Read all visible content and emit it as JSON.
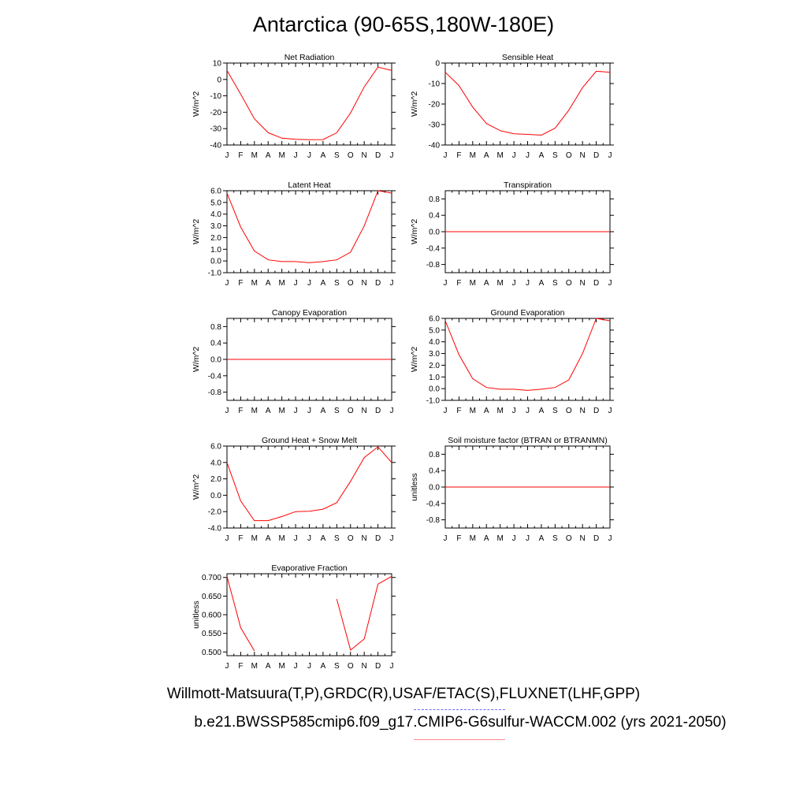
{
  "page": {
    "title": "Antarctica (90-65S,180W-180E)"
  },
  "footer": {
    "line1": "Willmott-Matsuura(T,P),GRDC(R),USAF/ETAC(S),FLUXNET(LHF,GPP)",
    "line2": "b.e21.BWSSP585cmip6.f09_g17.CMIP6-G6sulfur-WACCM.002 (yrs 2021-2050)"
  },
  "colors": {
    "series": "#ff0000",
    "axis": "#000000"
  },
  "chart_data": [
    {
      "type": "line",
      "title": "Net Radiation",
      "ylabel": "W/m^2",
      "categories": [
        "J",
        "F",
        "M",
        "A",
        "M",
        "J",
        "J",
        "A",
        "S",
        "O",
        "N",
        "D",
        "J"
      ],
      "ylim": [
        -40,
        10
      ],
      "yticks": [
        10,
        0,
        -10,
        -20,
        -30,
        -40
      ],
      "yticklabels": [
        "10",
        "0",
        "-10",
        "-20",
        "-30",
        "-40"
      ],
      "values": [
        5.5,
        -9,
        -24,
        -32.5,
        -35.8,
        -36.5,
        -36.8,
        -36.7,
        -32.5,
        -20.5,
        -4.5,
        7.5,
        5.5
      ]
    },
    {
      "type": "line",
      "title": "Sensible Heat",
      "ylabel": "W/m^2",
      "categories": [
        "J",
        "F",
        "M",
        "A",
        "M",
        "J",
        "J",
        "A",
        "S",
        "O",
        "N",
        "D",
        "J"
      ],
      "ylim": [
        -40,
        0
      ],
      "yticks": [
        0,
        -10,
        -20,
        -30,
        -40
      ],
      "yticklabels": [
        "0",
        "-10",
        "-20",
        "-30",
        "-40"
      ],
      "values": [
        -4.5,
        -11,
        -21.5,
        -29.5,
        -33,
        -34.5,
        -34.8,
        -35.2,
        -31.8,
        -23,
        -12,
        -4,
        -4.5
      ]
    },
    {
      "type": "line",
      "title": "Latent Heat",
      "ylabel": "W/m^2",
      "categories": [
        "J",
        "F",
        "M",
        "A",
        "M",
        "J",
        "J",
        "A",
        "S",
        "O",
        "N",
        "D",
        "J"
      ],
      "ylim": [
        -1,
        6
      ],
      "yticks": [
        6,
        5,
        4,
        3,
        2,
        1,
        0,
        -1
      ],
      "yticklabels": [
        "6.0",
        "5.0",
        "4.0",
        "3.0",
        "2.0",
        "1.0",
        "0.0",
        "-1.0"
      ],
      "values": [
        5.8,
        2.9,
        0.85,
        0.1,
        -0.05,
        -0.05,
        -0.15,
        -0.05,
        0.1,
        0.75,
        3.0,
        6.0,
        5.8
      ]
    },
    {
      "type": "line",
      "title": "Transpiration",
      "ylabel": "W/m^2",
      "categories": [
        "J",
        "F",
        "M",
        "A",
        "M",
        "J",
        "J",
        "A",
        "S",
        "O",
        "N",
        "D",
        "J"
      ],
      "ylim": [
        -1,
        1
      ],
      "yticks": [
        0.8,
        0.4,
        0,
        -0.4,
        -0.8
      ],
      "yticklabels": [
        "0.8",
        "0.4",
        "0.0",
        "-0.4",
        "-0.8"
      ],
      "values": [
        0,
        0,
        0,
        0,
        0,
        0,
        0,
        0,
        0,
        0,
        0,
        0,
        0
      ]
    },
    {
      "type": "line",
      "title": "Canopy Evaporation",
      "ylabel": "W/m^2",
      "categories": [
        "J",
        "F",
        "M",
        "A",
        "M",
        "J",
        "J",
        "A",
        "S",
        "O",
        "N",
        "D",
        "J"
      ],
      "ylim": [
        -1,
        1
      ],
      "yticks": [
        0.8,
        0.4,
        0,
        -0.4,
        -0.8
      ],
      "yticklabels": [
        "0.8",
        "0.4",
        "0.0",
        "-0.4",
        "-0.8"
      ],
      "values": [
        0,
        0,
        0,
        0,
        0,
        0,
        0,
        0,
        0,
        0,
        0,
        0,
        0
      ]
    },
    {
      "type": "line",
      "title": "Ground Evaporation",
      "ylabel": "W/m^2",
      "categories": [
        "J",
        "F",
        "M",
        "A",
        "M",
        "J",
        "J",
        "A",
        "S",
        "O",
        "N",
        "D",
        "J"
      ],
      "ylim": [
        -1,
        6
      ],
      "yticks": [
        6,
        5,
        4,
        3,
        2,
        1,
        0,
        -1
      ],
      "yticklabels": [
        "6.0",
        "5.0",
        "4.0",
        "3.0",
        "2.0",
        "1.0",
        "0.0",
        "-1.0"
      ],
      "values": [
        5.8,
        2.9,
        0.85,
        0.1,
        -0.05,
        -0.05,
        -0.15,
        -0.05,
        0.1,
        0.75,
        3.0,
        6.0,
        5.8
      ]
    },
    {
      "type": "line",
      "title": "Ground Heat + Snow Melt",
      "ylabel": "W/m^2",
      "categories": [
        "J",
        "F",
        "M",
        "A",
        "M",
        "J",
        "J",
        "A",
        "S",
        "O",
        "N",
        "D",
        "J"
      ],
      "ylim": [
        -4,
        6
      ],
      "yticks": [
        6,
        4,
        2,
        0,
        -2,
        -4
      ],
      "yticklabels": [
        "6.0",
        "4.0",
        "2.0",
        "0.0",
        "-2.0",
        "-4.0"
      ],
      "values": [
        4.0,
        -0.7,
        -3.1,
        -3.1,
        -2.6,
        -2.0,
        -1.95,
        -1.7,
        -0.9,
        1.7,
        4.6,
        5.9,
        4.0
      ]
    },
    {
      "type": "line",
      "title": "Soil moisture factor (BTRAN or BTRANMN)",
      "ylabel": "unitless",
      "categories": [
        "J",
        "F",
        "M",
        "A",
        "M",
        "J",
        "J",
        "A",
        "S",
        "O",
        "N",
        "D",
        "J"
      ],
      "ylim": [
        -1,
        1
      ],
      "yticks": [
        0.8,
        0.4,
        0,
        -0.4,
        -0.8
      ],
      "yticklabels": [
        "0.8",
        "0.4",
        "0.0",
        "-0.4",
        "-0.8"
      ],
      "values": [
        0,
        0,
        0,
        0,
        0,
        0,
        0,
        0,
        0,
        0,
        0,
        0,
        0
      ]
    },
    {
      "type": "line",
      "title": "Evaporative Fraction",
      "ylabel": "unitless",
      "categories": [
        "J",
        "F",
        "M",
        "A",
        "M",
        "J",
        "J",
        "A",
        "S",
        "O",
        "N",
        "D",
        "J"
      ],
      "ylim": [
        0.49,
        0.71
      ],
      "yticks": [
        0.7,
        0.65,
        0.6,
        0.55,
        0.5
      ],
      "yticklabels": [
        "0.700",
        "0.650",
        "0.600",
        "0.550",
        "0.500"
      ],
      "values": [
        0.703,
        0.565,
        0.503,
        null,
        null,
        null,
        null,
        null,
        0.642,
        0.505,
        0.535,
        0.682,
        0.703
      ]
    }
  ]
}
